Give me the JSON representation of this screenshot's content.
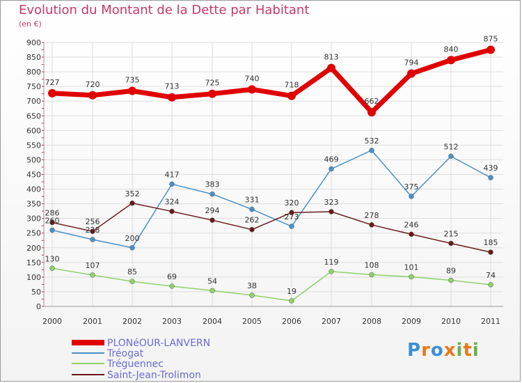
{
  "chart_data": {
    "type": "line",
    "title": "Evolution du Montant de la Dette par Habitant",
    "subtitle": "(en €)",
    "x": [
      "2000",
      "2001",
      "2002",
      "2003",
      "2004",
      "2005",
      "2006",
      "2007",
      "2008",
      "2009",
      "2010",
      "2011"
    ],
    "ylim": [
      0,
      900
    ],
    "yticks": [
      0,
      50,
      100,
      150,
      200,
      250,
      300,
      350,
      400,
      450,
      500,
      550,
      600,
      650,
      700,
      750,
      800,
      850,
      900
    ],
    "grid": true,
    "legend_position": "bottom-left",
    "series": [
      {
        "name": "PLONéOUR-LANVERN",
        "color": "#e00000",
        "values": [
          727,
          720,
          735,
          713,
          725,
          740,
          718,
          813,
          662,
          794,
          840,
          875
        ]
      },
      {
        "name": "Tréogat",
        "color": "#4a90c8",
        "values": [
          260,
          228,
          200,
          417,
          383,
          331,
          273,
          469,
          532,
          375,
          512,
          439
        ]
      },
      {
        "name": "Tréguennec",
        "color": "#8fd16a",
        "values": [
          130,
          107,
          85,
          69,
          54,
          38,
          19,
          119,
          108,
          101,
          89,
          74
        ]
      },
      {
        "name": "Saint-Jean-Trolimon",
        "color": "#6b1a1a",
        "values": [
          286,
          256,
          352,
          324,
          294,
          262,
          320,
          323,
          278,
          246,
          215,
          185
        ]
      }
    ],
    "data_labels": {
      "PLONéOUR-LANVERN": [
        "727",
        "720",
        "735",
        "713",
        "725",
        "740",
        "718",
        "813",
        "662",
        "794",
        "840",
        "875"
      ],
      "Tréogat": [
        "260",
        "228",
        "200",
        "417",
        "383",
        "331",
        "273",
        "469",
        "532",
        "375",
        "512",
        "439"
      ],
      "Tréguennec": [
        "130",
        "107",
        "85",
        "69",
        "54",
        "38",
        "19",
        "119",
        "108",
        "101",
        "89",
        "74"
      ],
      "Saint-Jean-Trolimon": [
        "286",
        "256",
        "352",
        "324",
        "294",
        "262",
        "320",
        "323",
        "278",
        "246",
        "215",
        "185"
      ]
    }
  },
  "logo": {
    "letters": [
      "P",
      "r",
      "o",
      "x",
      "i",
      "t",
      "i"
    ],
    "colors": [
      "#3a8fd8",
      "#e8791c",
      "#3a8fd8",
      "#e8791c",
      "#6ab04c",
      "#e8791c",
      "#6ab04c"
    ]
  }
}
